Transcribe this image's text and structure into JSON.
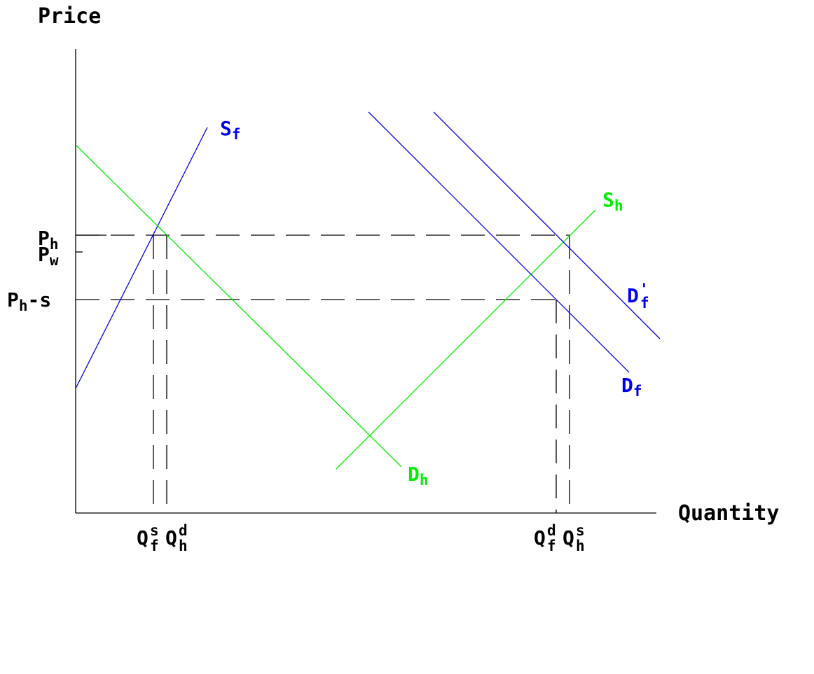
{
  "axes": {
    "y_title": "Price",
    "x_title": "Quantity"
  },
  "price_labels": {
    "p_h": {
      "main": "P",
      "sub": "h"
    },
    "p_w": {
      "main": "P",
      "sub": "w"
    },
    "p_h_minus_s": {
      "main": "P",
      "sub": "h",
      "rest": "-s"
    }
  },
  "quantity_labels": {
    "q_f_s": {
      "main": "Q",
      "sup": "s",
      "sub": "f"
    },
    "q_h_d": {
      "main": "Q",
      "sup": "d",
      "sub": "h"
    },
    "q_f_d": {
      "main": "Q",
      "sup": "d",
      "sub": "f"
    },
    "q_h_s": {
      "main": "Q",
      "sup": "s",
      "sub": "h"
    }
  },
  "curves": {
    "s_f": {
      "main": "S",
      "sub": "f",
      "color": "#0000ee"
    },
    "d_h": {
      "main": "D",
      "sub": "h",
      "color": "#00ee00"
    },
    "s_h": {
      "main": "S",
      "sub": "h",
      "color": "#00ee00"
    },
    "d_f": {
      "main": "D",
      "sub": "f",
      "color": "#0000ee"
    },
    "d_f_prime": {
      "main": "D",
      "sub": "f",
      "sup": "'",
      "color": "#0000ee"
    }
  }
}
